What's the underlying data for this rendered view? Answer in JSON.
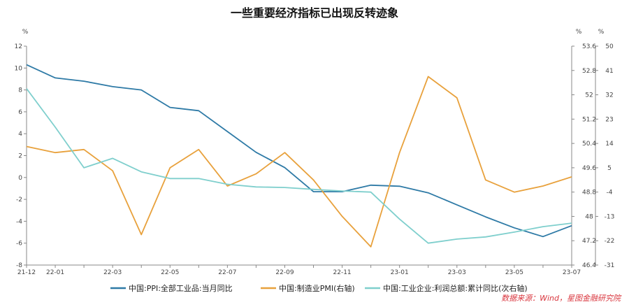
{
  "chart_data": {
    "type": "line",
    "title": "一些重要经济指标已出现反转迹象",
    "categories": [
      "21-12",
      "22-01",
      "22-02",
      "22-03",
      "22-04",
      "22-05",
      "22-06",
      "22-07",
      "22-08",
      "22-09",
      "22-10",
      "22-11",
      "22-12",
      "23-01",
      "23-02",
      "23-03",
      "23-04",
      "23-05",
      "23-06",
      "23-07"
    ],
    "x_tick_labels": [
      "21-12",
      "22-01",
      "22-03",
      "22-05",
      "22-07",
      "22-09",
      "22-11",
      "23-01",
      "23-03",
      "23-05",
      "23-07"
    ],
    "y_left": {
      "unit": "%",
      "min": -8,
      "max": 12,
      "ticks": [
        "-8",
        "-6",
        "-4",
        "-2",
        "0",
        "2",
        "4",
        "6",
        "8",
        "10",
        "12"
      ]
    },
    "y_right1": {
      "unit": "%",
      "min": 46.4,
      "max": 53.6,
      "ticks": [
        "46.4",
        "47.2",
        "48",
        "48.8",
        "49.6",
        "50.4",
        "51.2",
        "52",
        "52.8",
        "53.6"
      ]
    },
    "y_right2": {
      "unit": "%",
      "min": -31,
      "max": 50,
      "ticks": [
        "-31",
        "-22",
        "-13",
        "-4",
        "5",
        "14",
        "23",
        "32",
        "41",
        "50"
      ]
    },
    "series": [
      {
        "name": "中国:PPI:全部工业品:当月同比",
        "axis": "left",
        "color": "#2e7aa6",
        "values": [
          10.3,
          9.1,
          8.8,
          8.3,
          8.0,
          6.4,
          6.1,
          4.2,
          2.3,
          0.9,
          -1.3,
          -1.3,
          -0.7,
          -0.8,
          -1.4,
          -2.5,
          -3.6,
          -4.6,
          -5.4,
          -4.4
        ]
      },
      {
        "name": "中国:制造业PMI(右轴)",
        "axis": "right1",
        "color": "#e8a13c",
        "values": [
          50.3,
          50.1,
          50.2,
          49.5,
          47.4,
          49.6,
          50.2,
          49.0,
          49.4,
          50.1,
          49.2,
          48.0,
          47.0,
          50.1,
          52.6,
          51.9,
          49.2,
          48.8,
          49.0,
          49.3
        ]
      },
      {
        "name": "中国:工业企业:利润总额:累计同比(次右轴)",
        "axis": "right2",
        "color": "#7fcfcd",
        "values": [
          34.3,
          20.0,
          5.0,
          8.5,
          3.5,
          1.0,
          1.0,
          -1.1,
          -2.1,
          -2.3,
          -3.0,
          -3.6,
          -4.0,
          -14.0,
          -22.9,
          -21.4,
          -20.6,
          -18.8,
          -16.8,
          -15.5
        ]
      }
    ],
    "legend_position": "bottom",
    "grid": false,
    "source": "数据来源：Wind，星图金融研究院"
  }
}
